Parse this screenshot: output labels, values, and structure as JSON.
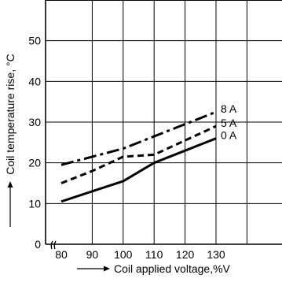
{
  "chart_data": {
    "type": "line",
    "title": "",
    "xlabel": "Coil applied voltage,%V",
    "ylabel": "Coil temperature rise, °C",
    "x_ticks": [
      "80",
      "90",
      "100",
      "110",
      "120",
      "130"
    ],
    "y_ticks": [
      "0",
      "10",
      "20",
      "30",
      "40",
      "50"
    ],
    "xlim": [
      78,
      150
    ],
    "ylim": [
      0,
      60
    ],
    "axis_break": "x-axis break near origin",
    "grid": true,
    "series": [
      {
        "name": "8 A",
        "style": "dash-dot",
        "x": [
          80,
          90,
          100,
          110,
          120,
          130
        ],
        "y": [
          19.5,
          21.5,
          23.5,
          26.5,
          29.5,
          32.5
        ]
      },
      {
        "name": "5 A",
        "style": "dashed",
        "x": [
          80,
          90,
          100,
          110,
          120,
          130
        ],
        "y": [
          15,
          18,
          21.5,
          22,
          25.5,
          29
        ]
      },
      {
        "name": "0 A",
        "style": "solid",
        "x": [
          80,
          90,
          100,
          110,
          120,
          130
        ],
        "y": [
          10.5,
          13,
          15.5,
          20,
          23,
          26
        ]
      }
    ]
  }
}
